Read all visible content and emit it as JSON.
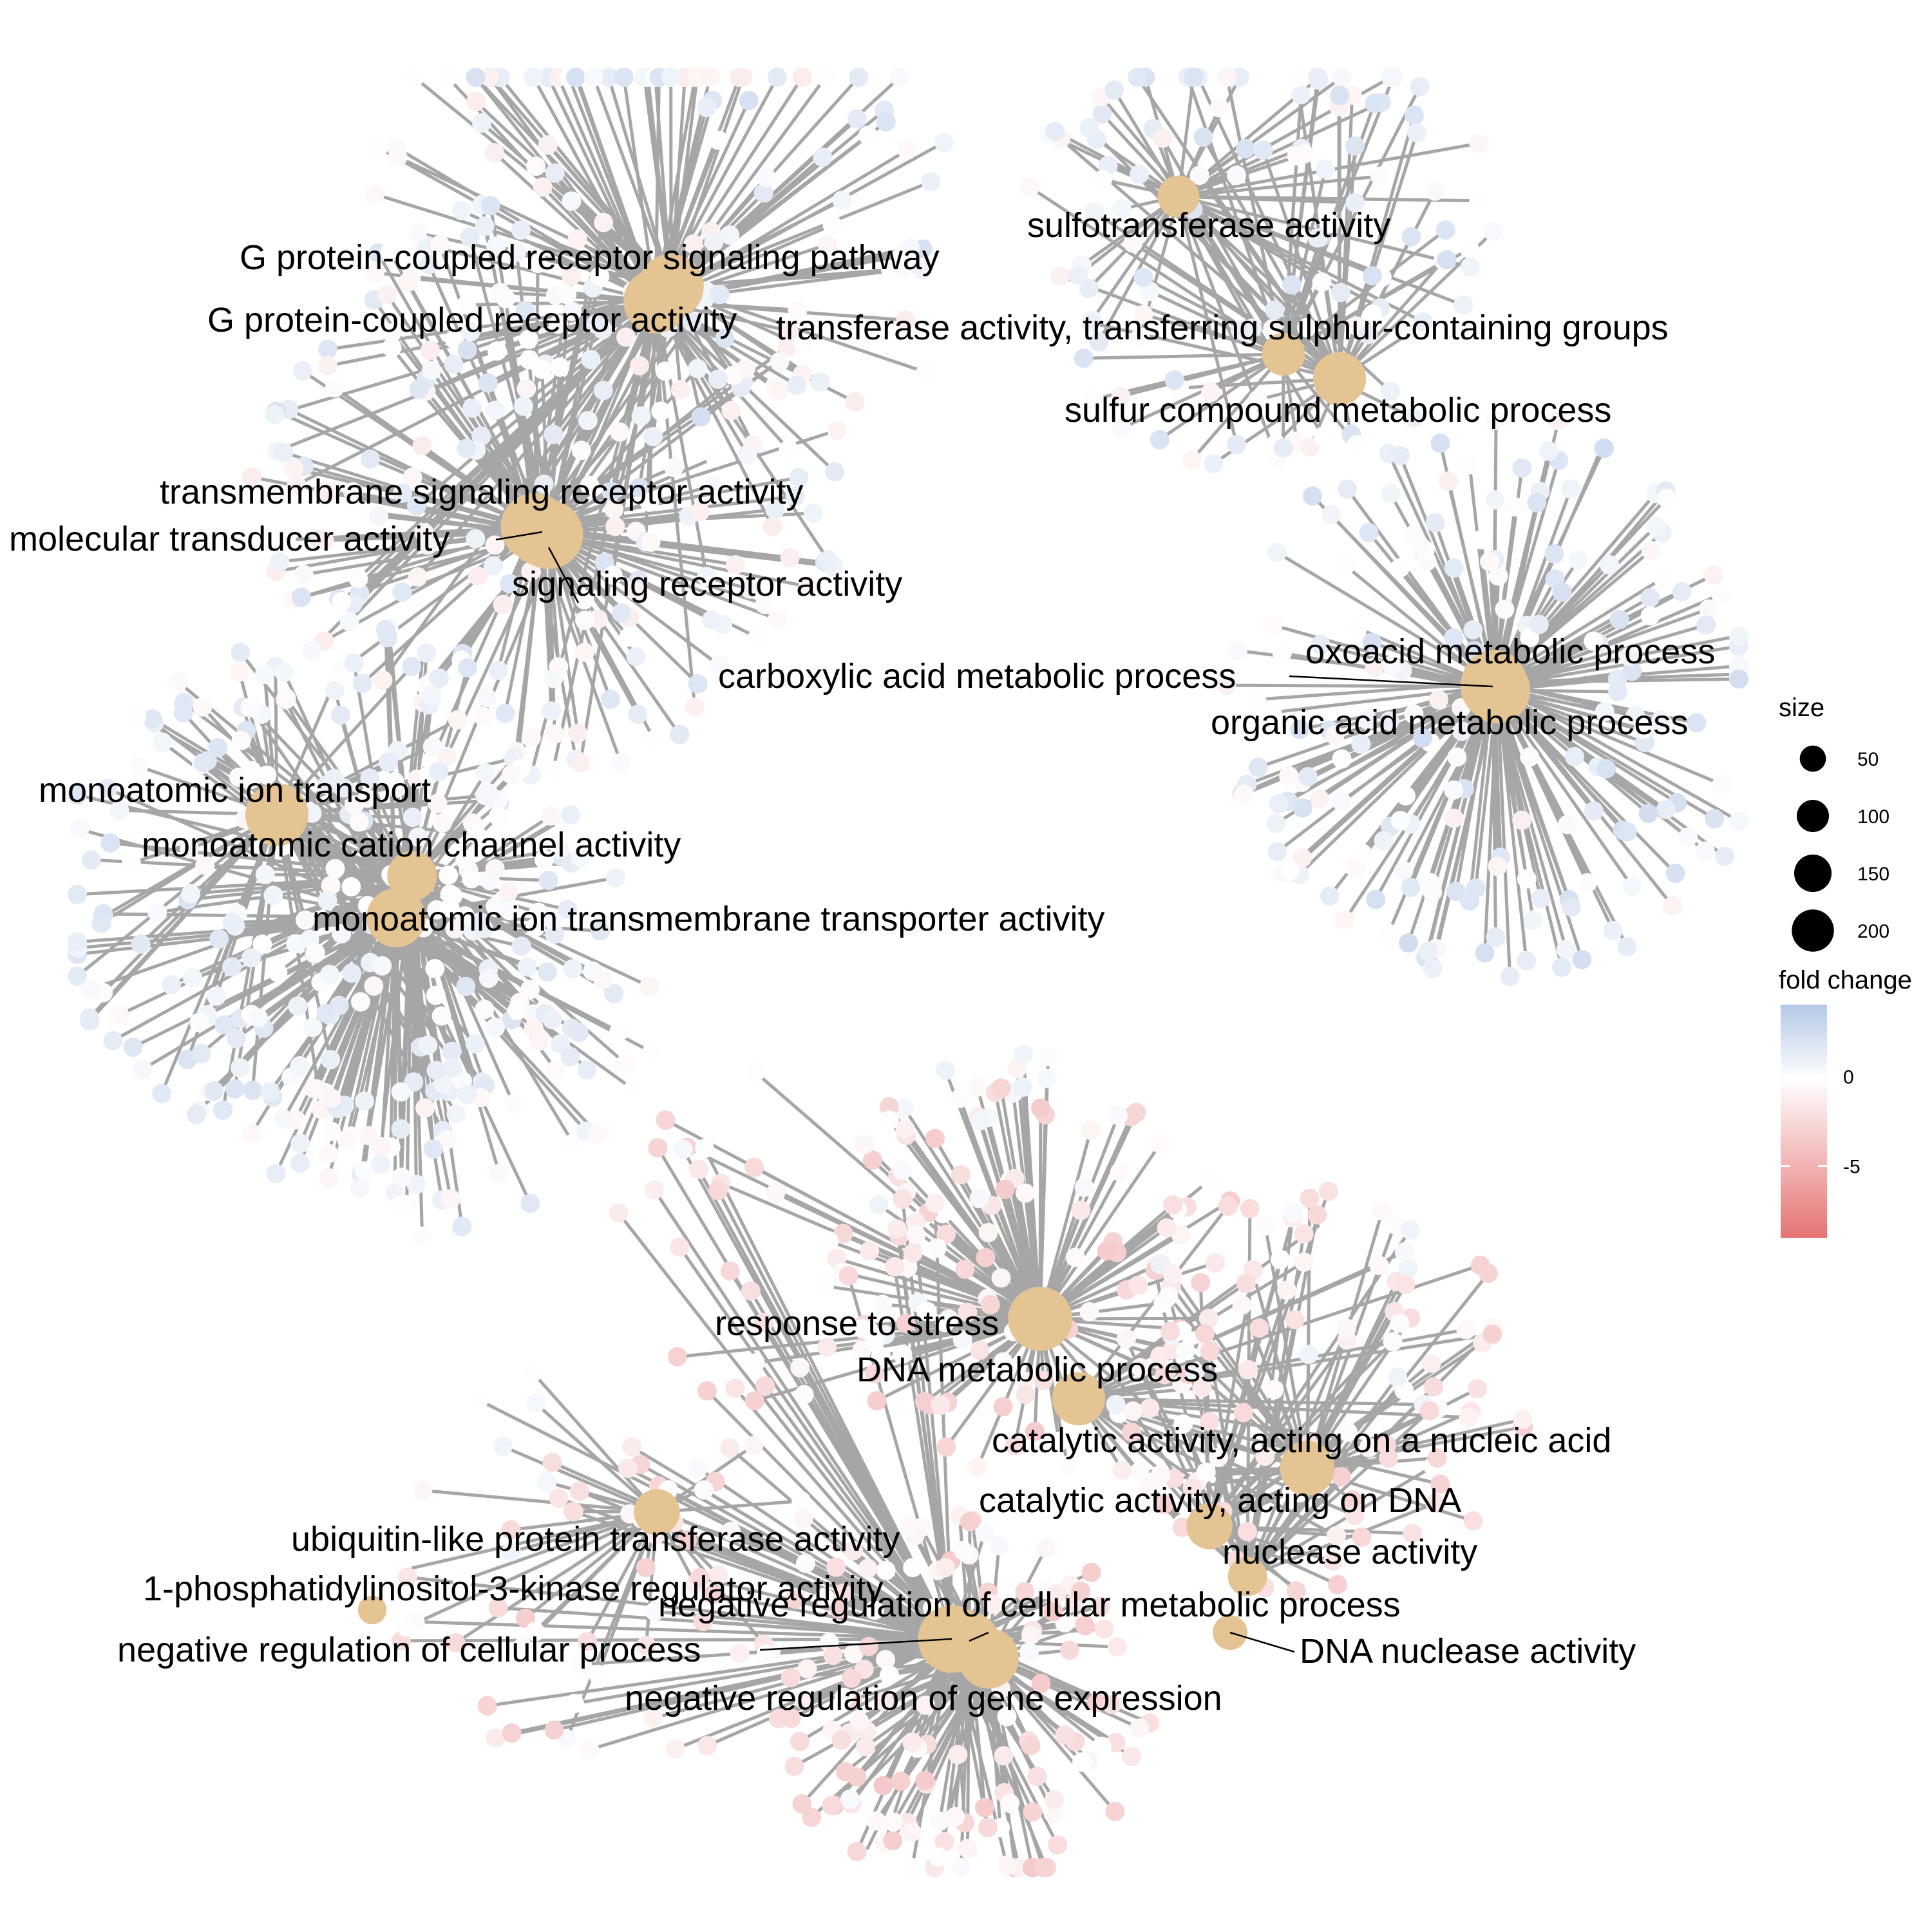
{
  "colors": {
    "edge": "#a6a6a6",
    "category_node": "#e5c494",
    "fold_high": "#b4c8e6",
    "fold_zero": "#ffffff",
    "fold_low": "#e57373",
    "leader_line": "#000000"
  },
  "categories": [
    {
      "id": "gpcr_path",
      "label": "G protein-coupled receptor signaling pathway",
      "size": 200,
      "cluster": "receptor"
    },
    {
      "id": "gpcr_act",
      "label": "G protein-coupled receptor activity",
      "size": 190,
      "cluster": "receptor"
    },
    {
      "id": "tm_sig",
      "label": "transmembrane signaling receptor activity",
      "size": 220,
      "cluster": "receptor"
    },
    {
      "id": "mol_trans",
      "label": "molecular transducer activity",
      "size": 230,
      "cluster": "receptor"
    },
    {
      "id": "sig_rec",
      "label": "signaling receptor activity",
      "size": 230,
      "cluster": "receptor"
    },
    {
      "id": "ion_trans",
      "label": "monoatomic ion transport",
      "size": 180,
      "cluster": "ion"
    },
    {
      "id": "cation_ch",
      "label": "monoatomic cation channel activity",
      "size": 90,
      "cluster": "ion"
    },
    {
      "id": "ion_tm",
      "label": "monoatomic ion transmembrane transporter activity",
      "size": 150,
      "cluster": "ion"
    },
    {
      "id": "sulfo",
      "label": "sulfotransferase activity",
      "size": 50,
      "cluster": "sulfur"
    },
    {
      "id": "transf_s",
      "label": "transferase activity, transferring sulphur-containing groups",
      "size": 55,
      "cluster": "sulfur"
    },
    {
      "id": "sulfur_met",
      "label": "sulfur compound metabolic process",
      "size": 110,
      "cluster": "sulfur"
    },
    {
      "id": "oxo",
      "label": "oxoacid metabolic process",
      "size": 200,
      "cluster": "acid"
    },
    {
      "id": "carbox",
      "label": "carboxylic acid metabolic process",
      "size": 195,
      "cluster": "acid"
    },
    {
      "id": "org_acid",
      "label": "organic acid metabolic process",
      "size": 205,
      "cluster": "acid"
    },
    {
      "id": "stress",
      "label": "response to stress",
      "size": 190,
      "cluster": "dna"
    },
    {
      "id": "dna_met",
      "label": "DNA metabolic process",
      "size": 110,
      "cluster": "dna"
    },
    {
      "id": "cat_na",
      "label": "catalytic activity, acting on a nucleic acid",
      "size": 120,
      "cluster": "dna"
    },
    {
      "id": "cat_dna",
      "label": "catalytic activity, acting on DNA",
      "size": 70,
      "cluster": "dna"
    },
    {
      "id": "nuclease",
      "label": "nuclease activity",
      "size": 40,
      "cluster": "dna"
    },
    {
      "id": "dna_nuc",
      "label": "DNA nuclease activity",
      "size": 25,
      "cluster": "dna"
    },
    {
      "id": "ubl",
      "label": "ubiquitin-like protein transferase activity",
      "size": 70,
      "cluster": "neg"
    },
    {
      "id": "pi3k",
      "label": "1-phosphatidylinositol-3-kinase regulator activity",
      "size": 10,
      "cluster": "neg"
    },
    {
      "id": "neg_cell",
      "label": "negative regulation of cellular process",
      "size": 220,
      "cluster": "neg"
    },
    {
      "id": "neg_met",
      "label": "negative regulation of cellular metabolic process",
      "size": 150,
      "cluster": "neg"
    },
    {
      "id": "neg_gene",
      "label": "negative regulation of gene expression",
      "size": 160,
      "cluster": "neg"
    }
  ],
  "legend": {
    "size_title": "size",
    "size_values": [
      50,
      100,
      150,
      200
    ],
    "color_title": "fold change",
    "color_ticks": [
      {
        "label": "0",
        "value": 0
      },
      {
        "label": "-5",
        "value": -5
      }
    ],
    "color_range": [
      -9,
      4
    ]
  }
}
